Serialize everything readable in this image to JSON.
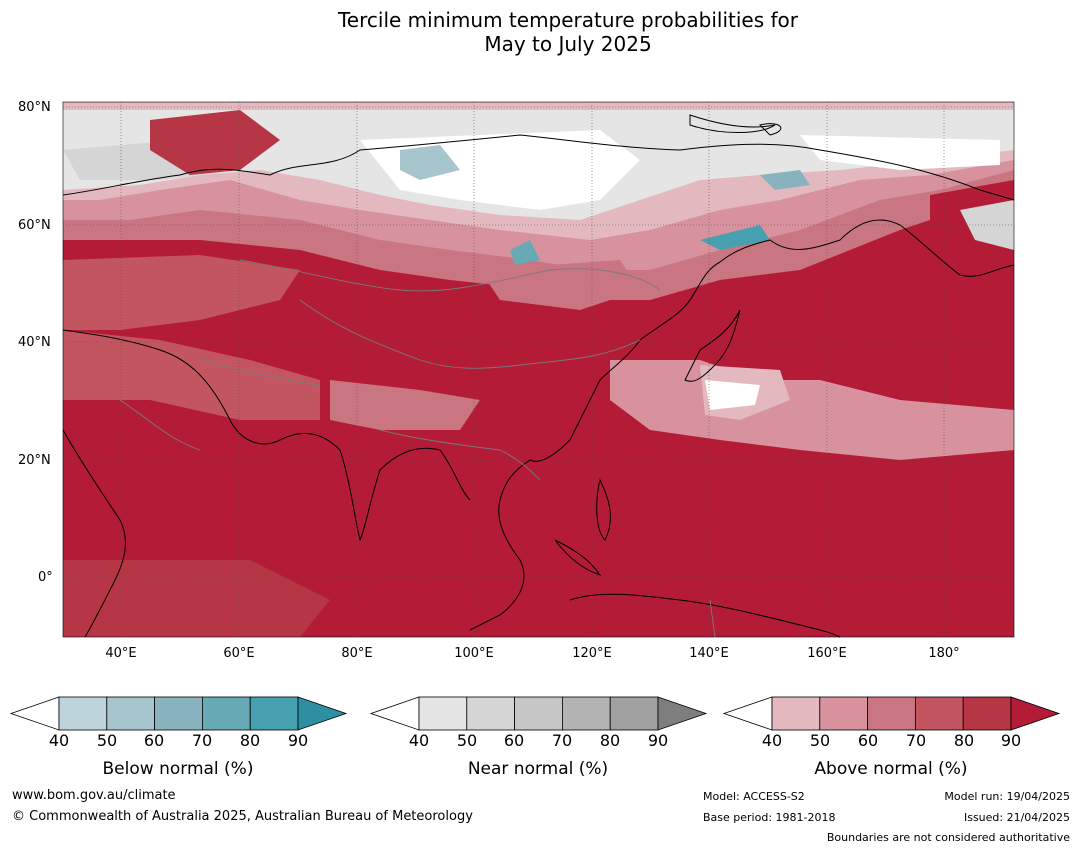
{
  "title_line1": "Tercile minimum temperature probabilities for",
  "title_line2": "May to July 2025",
  "lat_labels": [
    "80°N",
    "60°N",
    "40°N",
    "20°N",
    "0°"
  ],
  "lon_labels": [
    "40°E",
    "60°E",
    "80°E",
    "100°E",
    "120°E",
    "140°E",
    "160°E",
    "180°"
  ],
  "colorbars": [
    {
      "title": "Below normal (%)",
      "ticks": [
        "40",
        "50",
        "60",
        "70",
        "80",
        "90"
      ],
      "colors": [
        "#ffffff",
        "#bed4dc",
        "#a6c5cd",
        "#88b3be",
        "#68a9b6",
        "#47a0b0",
        "#2e8fa0"
      ]
    },
    {
      "title": "Near normal (%)",
      "ticks": [
        "40",
        "50",
        "60",
        "70",
        "80",
        "90"
      ],
      "colors": [
        "#ffffff",
        "#e5e5e5",
        "#d5d5d5",
        "#c6c6c6",
        "#b3b3b3",
        "#a0a0a0",
        "#7e7e7e"
      ]
    },
    {
      "title": "Above normal (%)",
      "ticks": [
        "40",
        "50",
        "60",
        "70",
        "80",
        "90"
      ],
      "colors": [
        "#ffffff",
        "#e3b8bf",
        "#d7929d",
        "#c97582",
        "#c2555f",
        "#b73646",
        "#b31b37"
      ]
    }
  ],
  "footer": {
    "website": "www.bom.gov.au/climate",
    "copyright": "© Commonwealth of Australia 2025, Australian Bureau of Meteorology",
    "model": "Model: ACCESS-S2",
    "base_period": "Base period: 1981-2018",
    "model_run": "Model run: 19/04/2025",
    "issued": "Issued: 21/04/2025",
    "boundaries": "Boundaries are not considered authoritative"
  }
}
